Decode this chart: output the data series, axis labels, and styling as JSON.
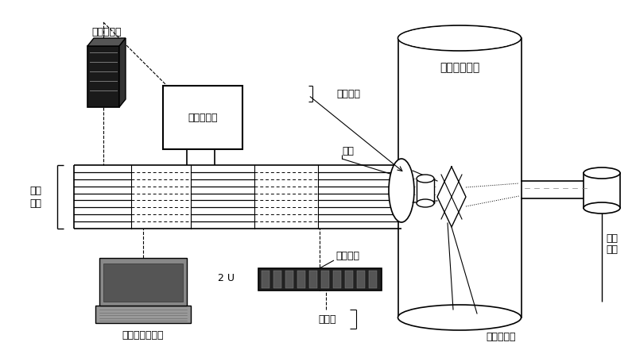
{
  "bg_color": "#ffffff",
  "labels": {
    "temp_controller": "温度控制器",
    "power_control": "电源控制板",
    "ir_probe": "红外探头",
    "flange": "法兰",
    "vacuum_chamber": "真空辐照靶室",
    "high_temp_wire_1": "高温",
    "high_temp_wire_2": "导线",
    "remote_computer": "远程控制计算机",
    "prog_power": "程控电源",
    "heating_chip": "加热片",
    "irr_control": "辐照控制板",
    "ion_beam_1": "离子",
    "ion_beam_2": "束流",
    "2u": "2 U"
  }
}
